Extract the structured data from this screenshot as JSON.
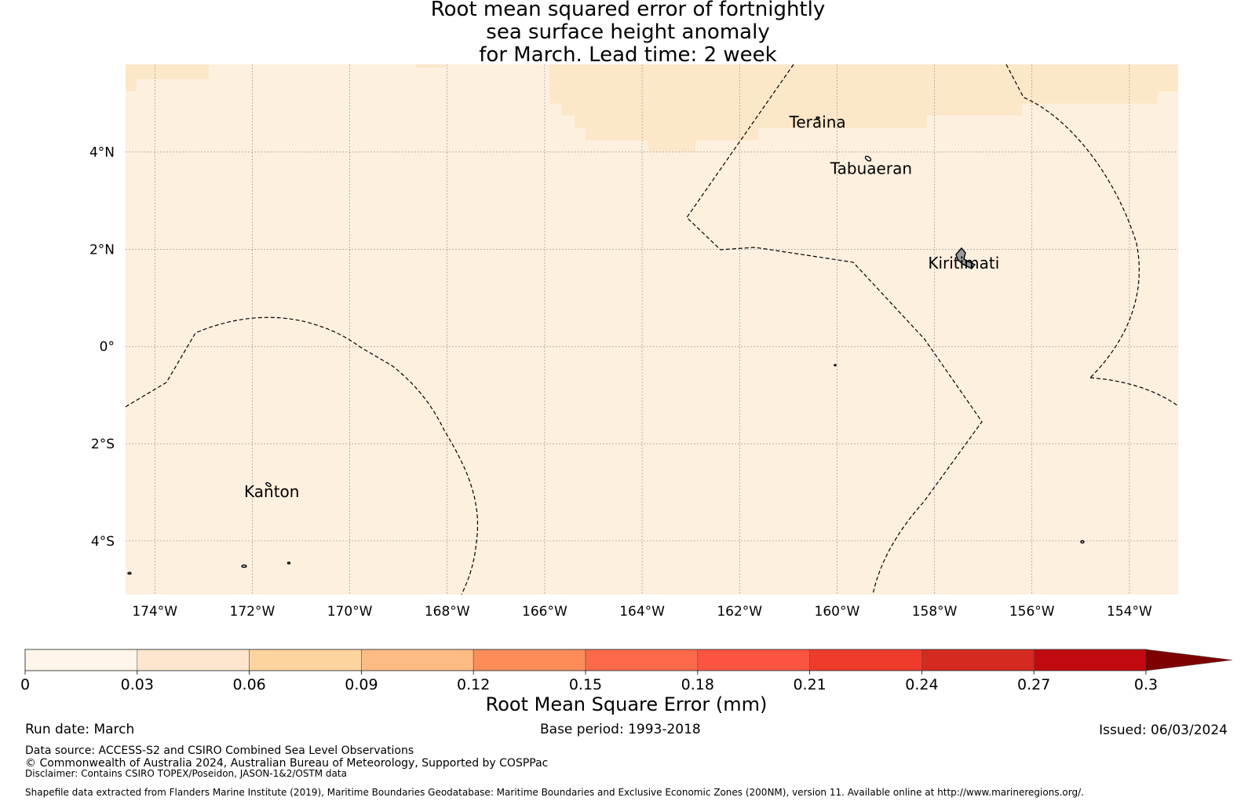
{
  "title": {
    "line1": "Root mean squared error of fortnightly",
    "line2": "sea surface height anomaly",
    "line3": "for March. Lead time: 2 week"
  },
  "map": {
    "lon_range": [
      -174.6,
      -153.0
    ],
    "lat_range": [
      -5.1,
      5.8
    ],
    "field_value_range_mm": [
      0,
      0.06
    ],
    "lon_ticks": [
      {
        "value": -174,
        "label": "174°W"
      },
      {
        "value": -172,
        "label": "172°W"
      },
      {
        "value": -170,
        "label": "170°W"
      },
      {
        "value": -168,
        "label": "168°W"
      },
      {
        "value": -166,
        "label": "166°W"
      },
      {
        "value": -164,
        "label": "164°W"
      },
      {
        "value": -162,
        "label": "162°W"
      },
      {
        "value": -160,
        "label": "160°W"
      },
      {
        "value": -158,
        "label": "158°W"
      },
      {
        "value": -156,
        "label": "156°W"
      },
      {
        "value": -154,
        "label": "154°W"
      }
    ],
    "lat_ticks": [
      {
        "value": 4,
        "label": "4°N"
      },
      {
        "value": 2,
        "label": "2°N"
      },
      {
        "value": 0,
        "label": "0°"
      },
      {
        "value": -2,
        "label": "2°S"
      },
      {
        "value": -4,
        "label": "4°S"
      }
    ],
    "places": [
      {
        "name": "Teraina",
        "lon": -160.4,
        "lat": 4.5
      },
      {
        "name": "Tabuaeran",
        "lon": -159.3,
        "lat": 3.55
      },
      {
        "name": "Kiritimati",
        "lon": -157.4,
        "lat": 1.6
      },
      {
        "name": "Kanton",
        "lon": -171.6,
        "lat": -3.1
      }
    ],
    "colors": {
      "field_base": "#fef0df",
      "field_higher": "#fde7c9",
      "boundary": "#000000"
    }
  },
  "colorbar": {
    "label": "Root Mean Square Error (mm)",
    "ticks": [
      "0",
      "0.03",
      "0.06",
      "0.09",
      "0.12",
      "0.15",
      "0.18",
      "0.21",
      "0.24",
      "0.27",
      "0.3"
    ],
    "colors": [
      "#fff5eb",
      "#fee6ce",
      "#fdd49e",
      "#fdbb84",
      "#fc8d59",
      "#fc6a4a",
      "#fb5443",
      "#ef3b2c",
      "#d42a1f",
      "#c10a10",
      "#a50000"
    ],
    "extend_color": "#7f0000"
  },
  "footer": {
    "run_date": "Run date: March",
    "base_period": "Base period: 1993-2018",
    "issued": "Issued: 06/03/2024",
    "data_source": "Data source: ACCESS-S2 and CSIRO Combined Sea Level Observations",
    "copyright": "© Commonwealth of Australia 2024, Australian Bureau of Meteorology, Supported by COSPPac",
    "disclaimer": "Disclaimer: Contains CSIRO TOPEX/Poseidon, JASON-1&2/OSTM data",
    "shapefile": "Shapefile data extracted from Flanders Marine Institute (2019), Maritime Boundaries Geodatabase: Maritime Boundaries and Exclusive Economic Zones (200NM), version 11. Available online at http://www.marineregions.org/."
  }
}
